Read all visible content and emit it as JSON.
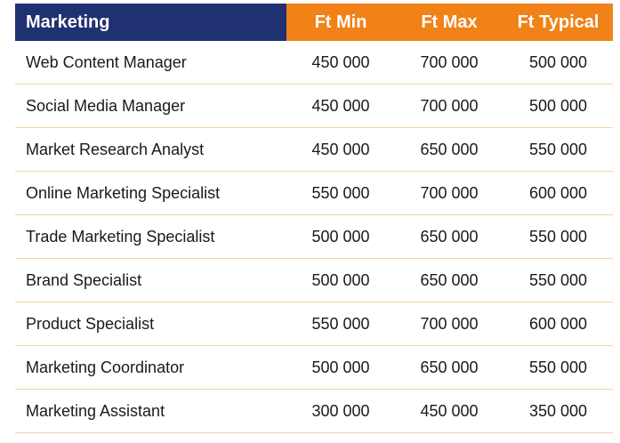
{
  "header": {
    "title": "Marketing",
    "col_min": "Ft Min",
    "col_max": "Ft Max",
    "col_typical": "Ft Typical"
  },
  "rows": [
    {
      "role": "Web Content Manager",
      "min": "450 000",
      "max": "700 000",
      "typical": "500 000"
    },
    {
      "role": "Social Media Manager",
      "min": "450 000",
      "max": "700 000",
      "typical": "500 000"
    },
    {
      "role": "Market Research Analyst",
      "min": "450 000",
      "max": "650 000",
      "typical": "550 000"
    },
    {
      "role": "Online Marketing Specialist",
      "min": "550 000",
      "max": "700 000",
      "typical": "600 000"
    },
    {
      "role": "Trade Marketing Specialist",
      "min": "500 000",
      "max": "650 000",
      "typical": "550 000"
    },
    {
      "role": "Brand Specialist",
      "min": "500 000",
      "max": "650 000",
      "typical": "550 000"
    },
    {
      "role": "Product Specialist",
      "min": "550 000",
      "max": "700 000",
      "typical": "600 000"
    },
    {
      "role": "Marketing Coordinator",
      "min": "500 000",
      "max": "650 000",
      "typical": "550 000"
    },
    {
      "role": "Marketing Assistant",
      "min": "300 000",
      "max": "450 000",
      "typical": "350 000"
    }
  ],
  "colors": {
    "header_title_bg": "#1f3170",
    "header_num_bg": "#f08218",
    "row_divider": "#efd6a4"
  }
}
